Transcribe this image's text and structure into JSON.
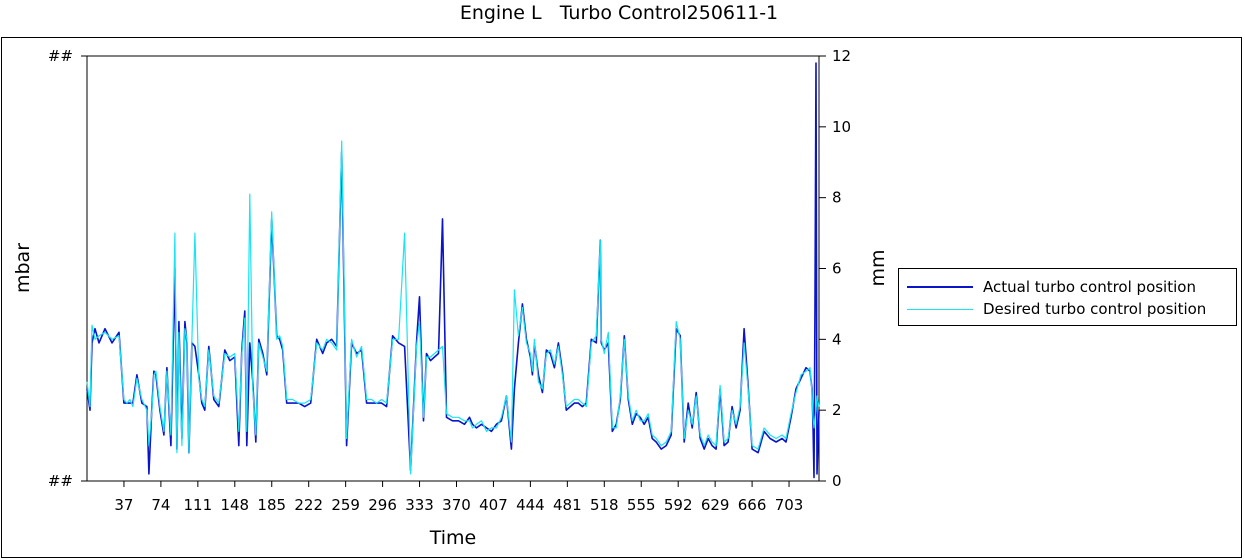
{
  "chart_data": {
    "type": "line",
    "title": "Engine L   Turbo Control250611-1",
    "xlabel": "Time",
    "ylabel_left": "mbar",
    "ylabel_right": "mm",
    "left_ticks": [
      "##",
      "##"
    ],
    "xlim": [
      0,
      733
    ],
    "ylim_right": [
      0,
      12
    ],
    "x_ticks": [
      37,
      74,
      111,
      148,
      185,
      222,
      259,
      296,
      333,
      370,
      407,
      444,
      481,
      518,
      555,
      592,
      629,
      666,
      703
    ],
    "y_ticks_right": [
      0,
      2,
      4,
      6,
      8,
      10,
      12
    ],
    "legend_position": "right",
    "grid": false,
    "series": [
      {
        "name": "Actual turbo control position",
        "color": "#0a14c8",
        "x": [
          0,
          3,
          5,
          8,
          12,
          18,
          25,
          32,
          37,
          40,
          43,
          46,
          50,
          55,
          60,
          62,
          65,
          67,
          69,
          73,
          77,
          80,
          84,
          88,
          90,
          92,
          95,
          98,
          100,
          102,
          105,
          108,
          112,
          115,
          118,
          122,
          127,
          132,
          138,
          143,
          148,
          152,
          155,
          158,
          160,
          163,
          166,
          169,
          172,
          176,
          180,
          185,
          190,
          193,
          196,
          200,
          206,
          212,
          218,
          224,
          230,
          236,
          240,
          245,
          250,
          255,
          260,
          265,
          270,
          275,
          280,
          285,
          290,
          295,
          300,
          306,
          312,
          318,
          324,
          330,
          333,
          337,
          340,
          344,
          348,
          352,
          356,
          360,
          366,
          372,
          378,
          383,
          386,
          390,
          395,
          400,
          405,
          410,
          415,
          420,
          425,
          428,
          432,
          436,
          440,
          444,
          446,
          448,
          452,
          456,
          460,
          464,
          468,
          472,
          476,
          480,
          484,
          488,
          492,
          496,
          500,
          505,
          510,
          514,
          515,
          518,
          522,
          526,
          530,
          534,
          538,
          542,
          546,
          550,
          554,
          558,
          562,
          566,
          570,
          575,
          580,
          585,
          590,
          594,
          598,
          602,
          606,
          610,
          614,
          618,
          622,
          626,
          630,
          634,
          638,
          642,
          646,
          650,
          654,
          658,
          662,
          666,
          672,
          678,
          684,
          690,
          696,
          700,
          705,
          710,
          715,
          720,
          724,
          726,
          727,
          728,
          729,
          730,
          731,
          733
        ],
        "y": [
          2.6,
          2.0,
          3.9,
          4.3,
          3.9,
          4.3,
          3.9,
          4.2,
          2.2,
          2.2,
          2.2,
          2.2,
          3.0,
          2.2,
          2.1,
          0.2,
          2.1,
          3.1,
          3.0,
          2.0,
          1.3,
          3.2,
          1.0,
          6.0,
          0.9,
          4.5,
          1.2,
          4.5,
          3.9,
          0.8,
          3.9,
          3.8,
          3.0,
          2.2,
          2.0,
          3.8,
          2.3,
          2.1,
          3.7,
          3.4,
          3.5,
          1.0,
          3.7,
          4.8,
          1.0,
          3.9,
          2.8,
          1.1,
          4.0,
          3.6,
          3.0,
          7.4,
          4.1,
          4.0,
          3.7,
          2.2,
          2.2,
          2.2,
          2.1,
          2.2,
          4.0,
          3.6,
          3.9,
          4.0,
          3.8,
          9.3,
          1.0,
          3.9,
          3.6,
          3.7,
          2.2,
          2.2,
          2.2,
          2.2,
          2.1,
          4.1,
          3.9,
          3.8,
          0.3,
          3.9,
          5.2,
          1.7,
          3.6,
          3.4,
          3.5,
          3.6,
          7.4,
          1.8,
          1.7,
          1.7,
          1.6,
          1.8,
          1.6,
          1.5,
          1.6,
          1.5,
          1.4,
          1.6,
          1.7,
          2.4,
          0.9,
          2.6,
          3.9,
          5.0,
          4.0,
          3.5,
          3.0,
          3.9,
          3.0,
          2.5,
          3.7,
          3.6,
          3.2,
          3.9,
          3.1,
          2.0,
          2.1,
          2.2,
          2.2,
          2.1,
          2.2,
          4.0,
          3.9,
          6.8,
          3.9,
          3.7,
          3.9,
          1.4,
          1.6,
          2.3,
          4.1,
          2.3,
          1.6,
          1.9,
          1.8,
          1.6,
          1.8,
          1.2,
          1.1,
          0.9,
          1.0,
          1.3,
          4.3,
          4.1,
          1.1,
          2.2,
          1.5,
          2.5,
          1.2,
          0.9,
          1.2,
          1.0,
          0.9,
          2.6,
          1.0,
          1.1,
          2.1,
          1.5,
          2.0,
          4.3,
          2.7,
          0.9,
          0.8,
          1.4,
          1.2,
          1.1,
          1.2,
          1.1,
          1.8,
          2.6,
          2.9,
          3.2,
          3.1,
          2.6,
          1.6,
          0.1,
          5.0,
          11.8,
          0.2,
          2.0
        ]
      },
      {
        "name": "Desired turbo control position",
        "color": "#18e4f4",
        "x": [
          0,
          3,
          5,
          8,
          12,
          18,
          25,
          32,
          37,
          40,
          43,
          46,
          50,
          55,
          60,
          62,
          65,
          67,
          69,
          73,
          77,
          80,
          84,
          88,
          90,
          92,
          95,
          98,
          100,
          102,
          105,
          108,
          112,
          115,
          118,
          122,
          127,
          132,
          138,
          143,
          148,
          152,
          155,
          158,
          160,
          163,
          166,
          169,
          172,
          176,
          180,
          185,
          190,
          193,
          196,
          200,
          206,
          212,
          218,
          224,
          230,
          236,
          240,
          245,
          250,
          255,
          260,
          265,
          270,
          275,
          280,
          285,
          290,
          295,
          300,
          306,
          312,
          318,
          324,
          330,
          333,
          337,
          340,
          344,
          348,
          352,
          356,
          360,
          366,
          372,
          378,
          383,
          386,
          390,
          395,
          400,
          405,
          410,
          415,
          420,
          425,
          428,
          432,
          436,
          440,
          444,
          446,
          448,
          452,
          456,
          460,
          464,
          468,
          472,
          476,
          480,
          484,
          488,
          492,
          496,
          500,
          505,
          510,
          514,
          515,
          518,
          522,
          526,
          530,
          534,
          538,
          542,
          546,
          550,
          554,
          558,
          562,
          566,
          570,
          575,
          580,
          585,
          590,
          594,
          598,
          602,
          606,
          610,
          614,
          618,
          622,
          626,
          630,
          634,
          638,
          642,
          646,
          650,
          654,
          658,
          662,
          666,
          672,
          678,
          684,
          690,
          696,
          700,
          705,
          710,
          715,
          720,
          724,
          726,
          727,
          728,
          729,
          730,
          731,
          733
        ],
        "y": [
          2.8,
          2.1,
          4.4,
          4.0,
          4.1,
          4.2,
          4.0,
          4.1,
          2.3,
          2.2,
          2.3,
          2.1,
          2.9,
          2.3,
          2.0,
          1.0,
          2.0,
          3.0,
          3.1,
          2.1,
          1.4,
          3.1,
          1.3,
          7.0,
          0.8,
          4.2,
          1.0,
          4.3,
          4.0,
          0.8,
          4.0,
          7.0,
          2.9,
          2.3,
          2.1,
          3.7,
          2.4,
          2.2,
          3.6,
          3.5,
          3.6,
          1.4,
          3.6,
          4.6,
          1.4,
          8.1,
          2.6,
          1.3,
          3.9,
          3.5,
          3.1,
          7.6,
          4.0,
          4.1,
          3.8,
          2.3,
          2.3,
          2.2,
          2.2,
          2.3,
          3.9,
          3.7,
          4.0,
          3.9,
          3.7,
          9.6,
          1.2,
          4.0,
          3.5,
          3.8,
          2.3,
          2.3,
          2.2,
          2.3,
          2.2,
          4.0,
          4.0,
          7.0,
          0.2,
          3.8,
          4.5,
          1.8,
          3.5,
          3.5,
          3.6,
          3.7,
          3.8,
          1.9,
          1.8,
          1.8,
          1.7,
          1.7,
          1.5,
          1.6,
          1.7,
          1.4,
          1.5,
          1.5,
          1.8,
          2.4,
          1.1,
          5.4,
          4.1,
          4.9,
          3.9,
          3.6,
          3.1,
          4.0,
          2.8,
          2.6,
          3.6,
          3.7,
          3.3,
          3.8,
          3.0,
          2.1,
          2.2,
          2.3,
          2.3,
          2.2,
          2.1,
          3.9,
          4.1,
          6.8,
          4.0,
          3.6,
          4.2,
          1.5,
          1.5,
          2.4,
          4.0,
          2.4,
          1.7,
          2.0,
          1.7,
          1.7,
          1.9,
          1.3,
          1.2,
          1.0,
          1.1,
          1.4,
          4.5,
          4.0,
          1.2,
          2.0,
          1.6,
          2.4,
          1.3,
          1.0,
          1.3,
          1.1,
          1.0,
          2.7,
          1.1,
          1.2,
          2.0,
          1.6,
          2.1,
          3.9,
          2.6,
          1.0,
          0.9,
          1.5,
          1.3,
          1.2,
          1.3,
          1.2,
          1.9,
          2.5,
          3.0,
          3.1,
          3.2,
          2.5,
          1.8,
          1.5,
          1.8,
          2.0,
          2.4,
          2.1
        ]
      }
    ]
  }
}
